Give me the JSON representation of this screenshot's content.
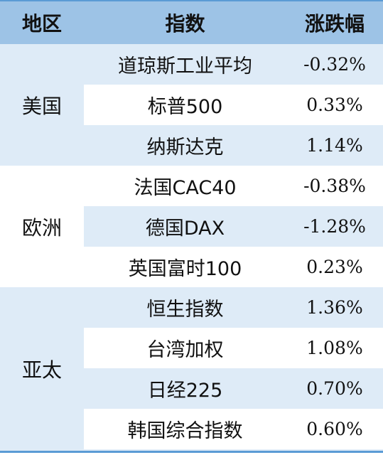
{
  "headers": {
    "region": "地区",
    "index": "指数",
    "change": "涨跌幅"
  },
  "groups": [
    {
      "region": "美国",
      "rows": [
        {
          "index": "道琼斯工业平均",
          "change": "-0.32%"
        },
        {
          "index": "标普500",
          "change": "0.33%"
        },
        {
          "index": "纳斯达克",
          "change": "1.14%"
        }
      ]
    },
    {
      "region": "欧洲",
      "rows": [
        {
          "index": "法国CAC40",
          "change": "-0.38%"
        },
        {
          "index": "德国DAX",
          "change": "-1.28%"
        },
        {
          "index": "英国富时100",
          "change": "0.23%"
        }
      ]
    },
    {
      "region": "亚太",
      "rows": [
        {
          "index": "恒生指数",
          "change": "1.36%"
        },
        {
          "index": "台湾加权",
          "change": "1.08%"
        },
        {
          "index": "日经225",
          "change": "0.70%"
        },
        {
          "index": "韩国综合指数",
          "change": "0.60%"
        }
      ]
    }
  ]
}
